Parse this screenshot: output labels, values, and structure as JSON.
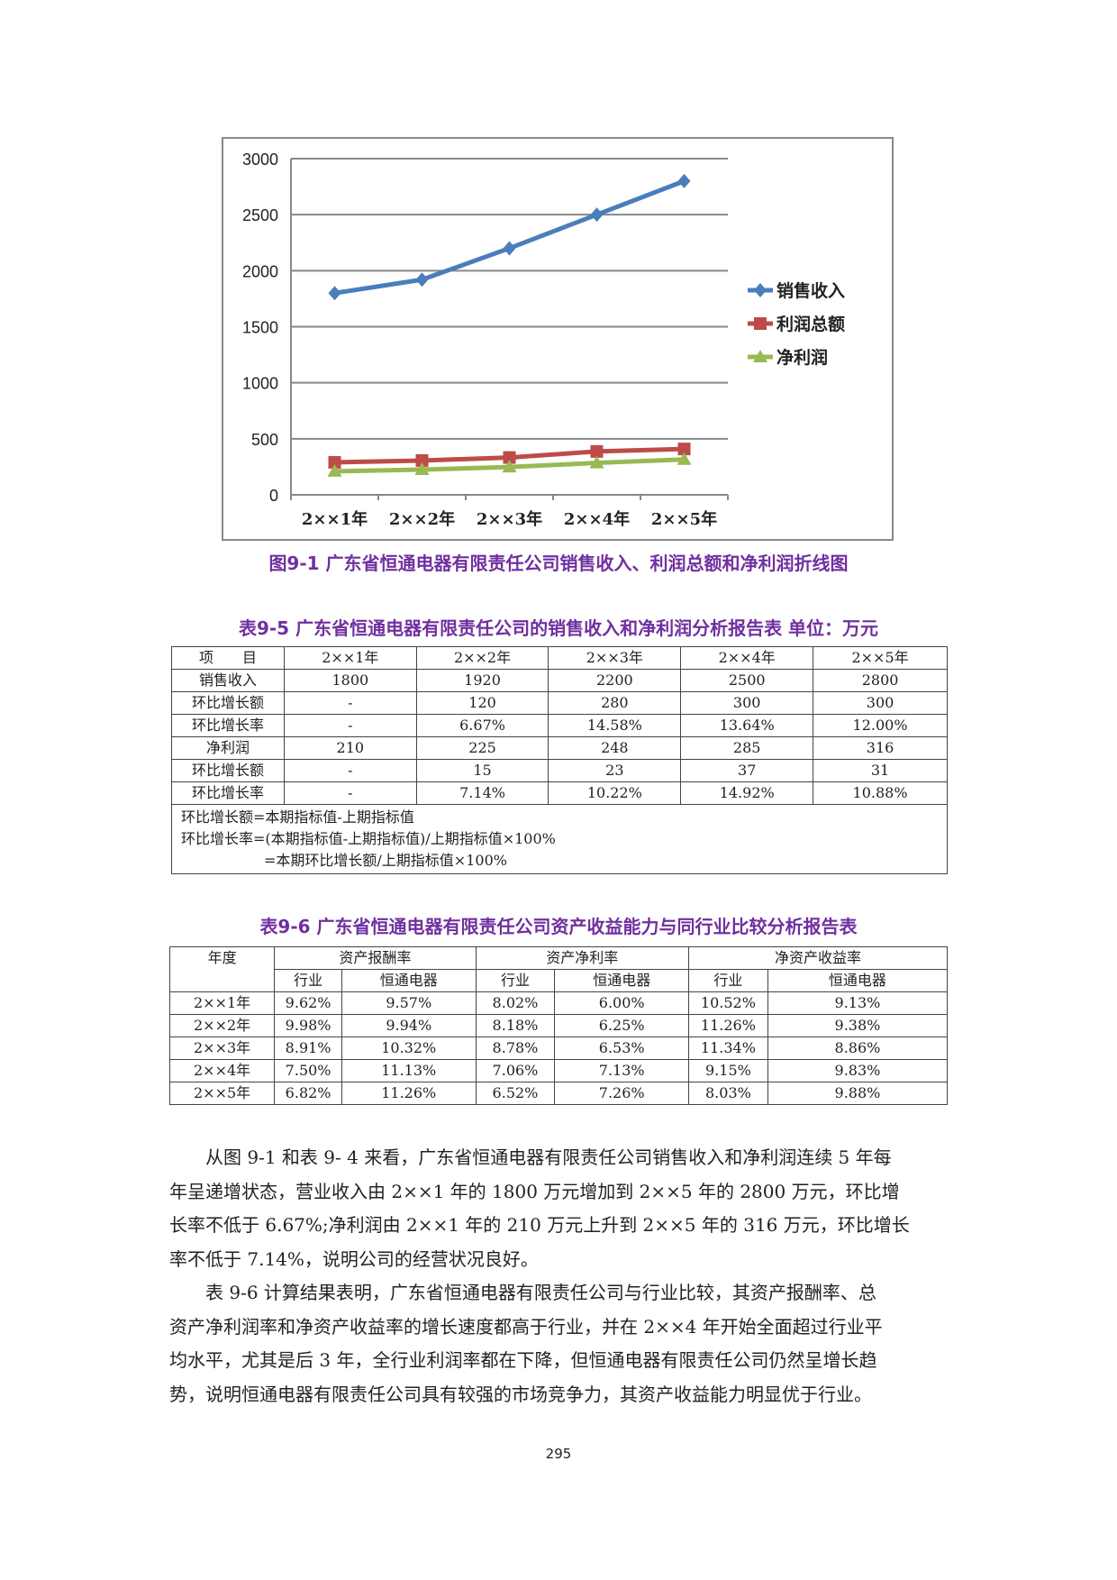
{
  "chart_data": {
    "type": "line",
    "categories": [
      "2××1年",
      "2××2年",
      "2××3年",
      "2××4年",
      "2××5年"
    ],
    "series": [
      {
        "name": "销售收入",
        "values": [
          1800,
          1920,
          2200,
          2500,
          2800
        ],
        "color": "#4a7ebb",
        "marker": "diamond"
      },
      {
        "name": "利润总额",
        "values": [
          290,
          306,
          333,
          387,
          409
        ],
        "color": "#be4b48",
        "marker": "square"
      },
      {
        "name": "净利润",
        "values": [
          210,
          225,
          248,
          285,
          316
        ],
        "color": "#98b954",
        "marker": "triangle"
      }
    ],
    "yticks": [
      0,
      500,
      1000,
      1500,
      2000,
      2500,
      3000
    ],
    "ylim": [
      0,
      3000
    ],
    "grid": true,
    "legend": "right"
  },
  "figure_caption": "图9-1 广东省恒通电器有限责任公司销售收入、利润总额和净利润折线图",
  "table1": {
    "title": "表9-5 广东省恒通电器有限责任公司的销售收入和净利润分析报告表  单位：万元",
    "header": [
      "项　　目",
      "2××1年",
      "2××2年",
      "2××3年",
      "2××4年",
      "2××5年"
    ],
    "rows": [
      [
        "销售收入",
        "1800",
        "1920",
        "2200",
        "2500",
        "2800"
      ],
      [
        "环比增长额",
        "-",
        "120",
        "280",
        "300",
        "300"
      ],
      [
        "环比增长率",
        "-",
        "6.67%",
        "14.58%",
        "13.64%",
        "12.00%"
      ],
      [
        "净利润",
        "210",
        "225",
        "248",
        "285",
        "316"
      ],
      [
        "环比增长额",
        "-",
        "15",
        "23",
        "37",
        "31"
      ],
      [
        "环比增长率",
        "-",
        "7.14%",
        "10.22%",
        "14.92%",
        "10.88%"
      ]
    ],
    "notes": [
      "环比增长额=本期指标值-上期指标值",
      "环比增长率=(本期指标值-上期指标值)/上期指标值×100%",
      "=本期环比增长额/上期指标值×100%"
    ]
  },
  "table2": {
    "title": "表9-6 广东省恒通电器有限责任公司资产收益能力与同行业比较分析报告表",
    "year_label": "年度",
    "groups": [
      "资产报酬率",
      "资产净利率",
      "净资产收益率"
    ],
    "sub": [
      "行业",
      "恒通电器"
    ],
    "rows": [
      [
        "2××1年",
        "9.62%",
        "9.57%",
        "8.02%",
        "6.00%",
        "10.52%",
        "9.13%"
      ],
      [
        "2××2年",
        "9.98%",
        "9.94%",
        "8.18%",
        "6.25%",
        "11.26%",
        "9.38%"
      ],
      [
        "2××3年",
        "8.91%",
        "10.32%",
        "8.78%",
        "6.53%",
        "11.34%",
        "8.86%"
      ],
      [
        "2××4年",
        "7.50%",
        "11.13%",
        "7.06%",
        "7.13%",
        "9.15%",
        "9.83%"
      ],
      [
        "2××5年",
        "6.82%",
        "11.26%",
        "6.52%",
        "7.26%",
        "8.03%",
        "9.88%"
      ]
    ]
  },
  "paragraph1": [
    "　　从图 9-1 和表 9- 4 来看，广东省恒通电器有限责任公司销售收入和净利润连续 5 年每",
    "年呈递增状态，营业收入由 2××1 年的 1800 万元增加到 2××5 年的 2800 万元，环比增",
    "长率不低于 6.67%;净利润由 2××1 年的 210 万元上升到 2××5 年的 316 万元，环比增长",
    "率不低于 7.14%，说明公司的经营状况良好。"
  ],
  "paragraph2": [
    "　　表 9-6 计算结果表明，广东省恒通电器有限责任公司与行业比较，其资产报酬率、总",
    "资产净利润率和净资产收益率的增长速度都高于行业，并在 2××4 年开始全面超过行业平",
    "均水平，尤其是后 3 年，全行业利润率都在下降，但恒通电器有限责任公司仍然呈增长趋",
    "势，说明恒通电器有限责任公司具有较强的市场竞争力，其资产收益能力明显优于行业。"
  ],
  "page_number": "295"
}
